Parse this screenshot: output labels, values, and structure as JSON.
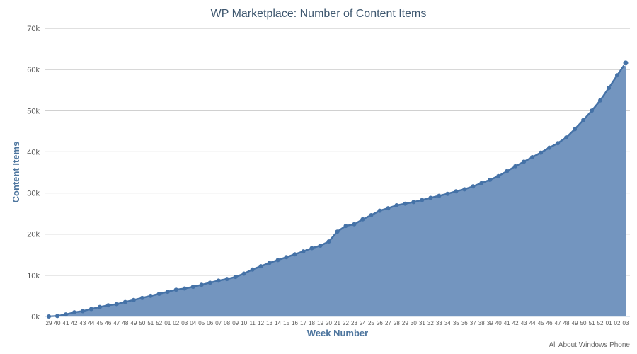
{
  "chart_data": {
    "type": "area",
    "title": "WP Marketplace: Number of Content Items",
    "xlabel": "Week Number",
    "ylabel": "Content Items",
    "credits": "All About Windows Phone",
    "ylim": [
      0,
      70000
    ],
    "yticks": [
      "0k",
      "10k",
      "20k",
      "30k",
      "40k",
      "50k",
      "60k",
      "70k"
    ],
    "grid": true,
    "legend": "none",
    "colors": {
      "fill": "#7395bf",
      "line": "#4572a7",
      "marker": "#4572a7"
    },
    "categories": [
      "29",
      "40",
      "41",
      "42",
      "43",
      "44",
      "45",
      "46",
      "47",
      "48",
      "49",
      "50",
      "51",
      "52",
      "01",
      "02",
      "03",
      "04",
      "05",
      "06",
      "07",
      "08",
      "09",
      "10",
      "11",
      "12",
      "13",
      "14",
      "15",
      "16",
      "17",
      "18",
      "19",
      "20",
      "21",
      "22",
      "23",
      "24",
      "25",
      "26",
      "27",
      "28",
      "29",
      "30",
      "31",
      "32",
      "33",
      "34",
      "35",
      "36",
      "37",
      "38",
      "39",
      "40",
      "41",
      "42",
      "43",
      "44",
      "45",
      "46",
      "47",
      "48",
      "49",
      "50",
      "51",
      "52",
      "01",
      "02",
      "03"
    ],
    "values": [
      0,
      100,
      500,
      1000,
      1300,
      1800,
      2300,
      2700,
      3000,
      3500,
      4000,
      4500,
      5000,
      5500,
      6000,
      6500,
      6800,
      7200,
      7700,
      8200,
      8700,
      9100,
      9600,
      10400,
      11400,
      12200,
      13000,
      13700,
      14400,
      15100,
      15800,
      16600,
      17200,
      18200,
      20600,
      22000,
      22400,
      23600,
      24600,
      25700,
      26300,
      27000,
      27400,
      27800,
      28300,
      28800,
      29300,
      29800,
      30400,
      30900,
      31600,
      32400,
      33200,
      34100,
      35300,
      36500,
      37600,
      38700,
      39800,
      41000,
      42100,
      43500,
      45500,
      47700,
      50000,
      52500,
      55500,
      58600,
      61600
    ]
  }
}
